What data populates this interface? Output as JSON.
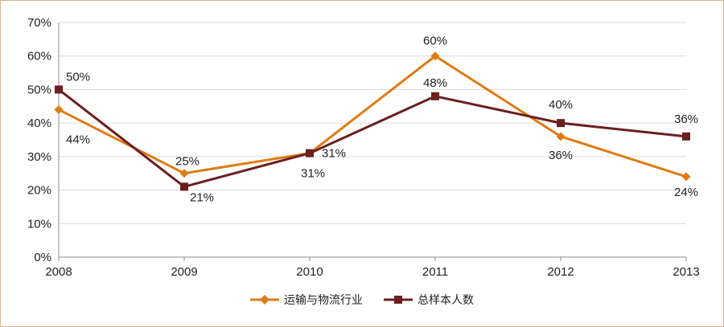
{
  "chart_data": {
    "type": "line",
    "title": "",
    "xlabel": "",
    "ylabel": "",
    "x": [
      "2008",
      "2009",
      "2010",
      "2011",
      "2012",
      "2013"
    ],
    "ylim": [
      0,
      70
    ],
    "y_ticks": [
      "0%",
      "10%",
      "20%",
      "30%",
      "40%",
      "50%",
      "60%",
      "70%"
    ],
    "grid": true,
    "legend_position": "bottom",
    "series": [
      {
        "name": "运输与物流行业",
        "color": "#e07b14",
        "marker": "diamond",
        "values": [
          44,
          25,
          31,
          60,
          36,
          24
        ],
        "labels": [
          "44%",
          "25%",
          "31%",
          "60%",
          "36%",
          "24%"
        ]
      },
      {
        "name": "总样本人数",
        "color": "#6b1f1f",
        "marker": "square",
        "values": [
          50,
          21,
          31,
          48,
          40,
          36
        ],
        "labels": [
          "50%",
          "21%",
          "31%",
          "48%",
          "40%",
          "36%"
        ]
      }
    ]
  }
}
